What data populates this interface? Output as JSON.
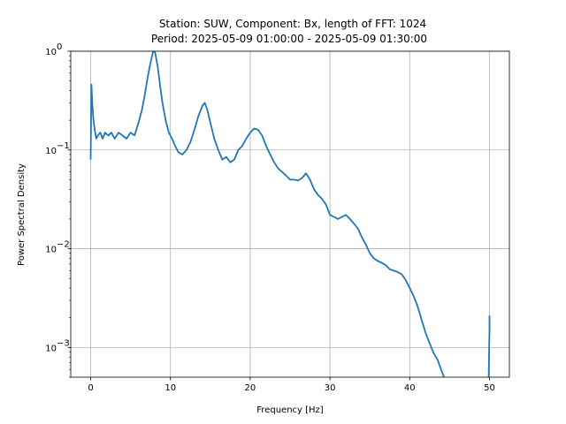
{
  "chart_data": {
    "type": "line",
    "title_line1": "Station: SUW, Component: Bx, length of FFT: 1024",
    "title_line2": "Period: 2025-05-09 01:00:00 - 2025-05-09 01:30:00",
    "xlabel": "Frequency [Hz]",
    "ylabel": "Power Spectral Density",
    "xlim": [
      -2.5,
      52.5
    ],
    "ylim": [
      0.0005,
      1
    ],
    "yscale": "log",
    "grid": true,
    "x_ticks": [
      0,
      10,
      20,
      30,
      40,
      50
    ],
    "x_tick_labels": [
      "0",
      "10",
      "20",
      "30",
      "40",
      "50"
    ],
    "y_major_ticks": [
      0.001,
      0.01,
      0.1,
      1
    ],
    "y_tick_labels": [
      "10",
      "10",
      "10",
      "10"
    ],
    "y_tick_exponents": [
      "−3",
      "−2",
      "−1",
      "0"
    ],
    "line_color": "#1f77b4",
    "series": [
      {
        "x": [
          0,
          0.1,
          0.2,
          0.35,
          0.5,
          0.7,
          0.9,
          1.2,
          1.5,
          1.8,
          2.2,
          2.6,
          3.0,
          3.5,
          4.0,
          4.5,
          5.0,
          5.5,
          6.0,
          6.4,
          6.8,
          7.1,
          7.4,
          7.7,
          7.9,
          8.1,
          8.4,
          8.7,
          9.0,
          9.4,
          9.8,
          10.2,
          10.6,
          11.0,
          11.5,
          12.0,
          12.5,
          13.0,
          13.5,
          14.0,
          14.3,
          14.6,
          15.0,
          15.5,
          16.0,
          16.5,
          17.0,
          17.5,
          18.0,
          18.5,
          19.0,
          19.5,
          20.0,
          20.5,
          21.0,
          21.5,
          22.0,
          22.5,
          23.0,
          23.5,
          24.0,
          24.5,
          25.0,
          25.5,
          26.0,
          26.5,
          27.0,
          27.5,
          28.0,
          28.5,
          29.0,
          29.5,
          30.0,
          30.5,
          31.0,
          31.5,
          32.0,
          32.5,
          33.0,
          33.5,
          34.0,
          34.5,
          35.0,
          35.5,
          36.0,
          36.5,
          37.0,
          37.5,
          38.0,
          38.5,
          39.0,
          39.5,
          40.0,
          40.5,
          41.0,
          41.5,
          42.0,
          42.5,
          43.0,
          43.5,
          44.0,
          44.3
        ],
        "y": [
          0.08,
          0.46,
          0.3,
          0.2,
          0.16,
          0.13,
          0.14,
          0.15,
          0.13,
          0.15,
          0.14,
          0.15,
          0.13,
          0.15,
          0.14,
          0.13,
          0.15,
          0.14,
          0.19,
          0.25,
          0.37,
          0.52,
          0.7,
          0.9,
          1.05,
          0.95,
          0.7,
          0.45,
          0.3,
          0.2,
          0.15,
          0.13,
          0.11,
          0.095,
          0.09,
          0.1,
          0.12,
          0.16,
          0.22,
          0.28,
          0.3,
          0.26,
          0.19,
          0.13,
          0.1,
          0.08,
          0.085,
          0.075,
          0.08,
          0.1,
          0.11,
          0.13,
          0.15,
          0.165,
          0.16,
          0.14,
          0.11,
          0.09,
          0.075,
          0.065,
          0.06,
          0.055,
          0.05,
          0.05,
          0.049,
          0.052,
          0.058,
          0.05,
          0.04,
          0.035,
          0.032,
          0.028,
          0.022,
          0.021,
          0.02,
          0.021,
          0.022,
          0.02,
          0.018,
          0.016,
          0.013,
          0.011,
          0.009,
          0.008,
          0.0075,
          0.0072,
          0.0068,
          0.0062,
          0.006,
          0.0058,
          0.0055,
          0.0048,
          0.004,
          0.0033,
          0.0026,
          0.0019,
          0.0014,
          0.0011,
          0.00088,
          0.00075,
          0.00058,
          0.0005
        ]
      },
      {
        "x": [
          49.9,
          49.95,
          50.0,
          50.0
        ],
        "y": [
          0.0005,
          0.0009,
          0.0015,
          0.0021
        ]
      }
    ]
  }
}
